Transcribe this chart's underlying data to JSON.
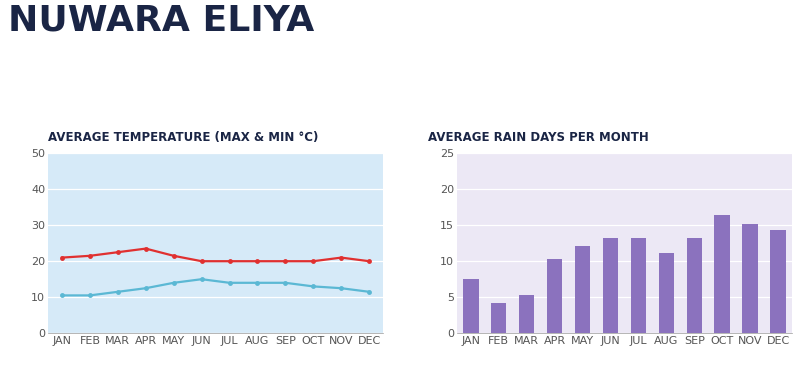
{
  "title": "NUWARA ELIYA",
  "title_color": "#1a2545",
  "months": [
    "JAN",
    "FEB",
    "MAR",
    "APR",
    "MAY",
    "JUN",
    "JUL",
    "AUG",
    "SEP",
    "OCT",
    "NOV",
    "DEC"
  ],
  "temp_subtitle": "AVERAGE TEMPERATURE (MAX & MIN °C)",
  "rain_subtitle": "AVERAGE RAIN DAYS PER MONTH",
  "temp_max": [
    21,
    21.5,
    22.5,
    23.5,
    21.5,
    20,
    20,
    20,
    20,
    20,
    21,
    20
  ],
  "temp_min": [
    10.5,
    10.5,
    11.5,
    12.5,
    14,
    15,
    14,
    14,
    14,
    13,
    12.5,
    11.5
  ],
  "rain_days": [
    7.5,
    4.2,
    5.3,
    10.3,
    12.1,
    13.2,
    13.2,
    11.2,
    13.2,
    16.4,
    15.2,
    14.3
  ],
  "temp_max_color": "#e03030",
  "temp_min_color": "#5bb8d4",
  "bar_color": "#8b72be",
  "temp_bg_color": "#d6eaf8",
  "rain_bg_color": "#ece8f5",
  "temp_ylim": [
    0,
    50
  ],
  "temp_yticks": [
    0,
    10,
    20,
    30,
    40,
    50
  ],
  "rain_ylim": [
    0,
    25
  ],
  "rain_yticks": [
    0,
    5,
    10,
    15,
    20,
    25
  ],
  "subtitle_fontsize": 8.5,
  "tick_fontsize": 8,
  "subtitle_color": "#1a2545",
  "grid_color": "#ffffff",
  "tick_color": "#555555",
  "title_fontsize": 26
}
